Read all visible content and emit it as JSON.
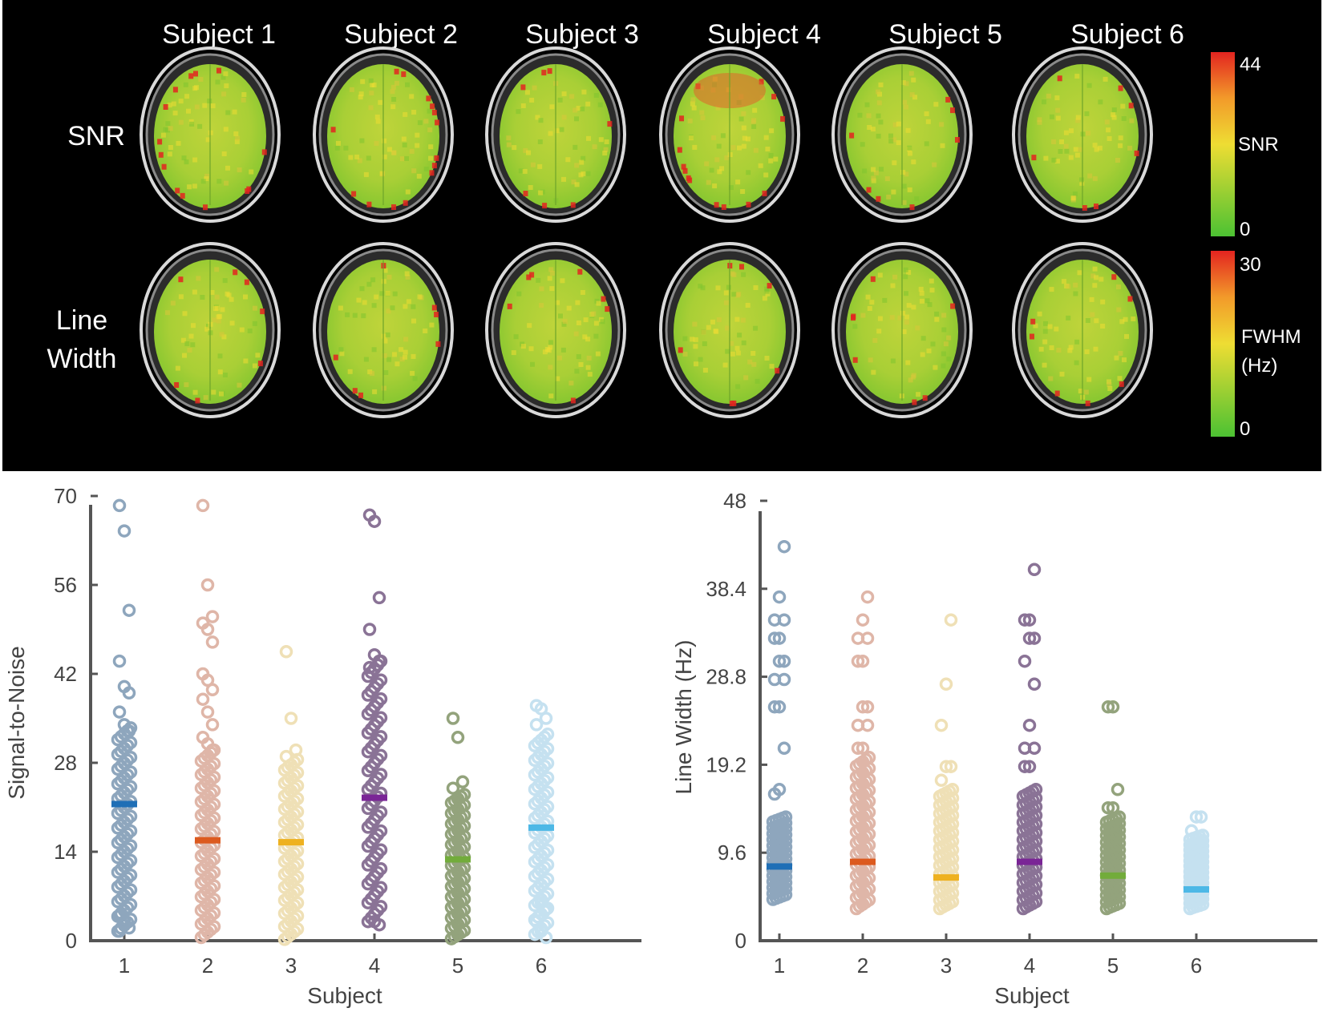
{
  "top_panel": {
    "subjects": [
      "Subject 1",
      "Subject 2",
      "Subject 3",
      "Subject 4",
      "Subject 5",
      "Subject 6"
    ],
    "row_labels": {
      "snr": "SNR",
      "linewidth_line1": "Line",
      "linewidth_line2": "Width"
    },
    "colorbars": {
      "snr": {
        "max": "44",
        "min": "0",
        "label": "SNR"
      },
      "fwhm": {
        "max": "30",
        "min": "0",
        "label_line1": "FWHM",
        "label_line2": "(Hz)"
      }
    }
  },
  "colors": {
    "background_top": "#000000",
    "map_low": "#4cc233",
    "map_mid": "#eedd33",
    "map_high": "#e32420",
    "subject_points": [
      "#8ea6bd",
      "#dfb6a8",
      "#efe0b6",
      "#8a7396",
      "#93a37c",
      "#c5e1f0"
    ],
    "subject_means": [
      "#1f6fb6",
      "#dc5a1f",
      "#eeb120",
      "#7a2596",
      "#72ac3b",
      "#4db8e6"
    ]
  },
  "chart_data": [
    {
      "type": "scatter",
      "id": "snr",
      "title": "",
      "xlabel": "Subject",
      "ylabel": "Signal-to-Noise",
      "categories": [
        "1",
        "2",
        "3",
        "4",
        "5",
        "6"
      ],
      "xlim": [
        0.3,
        7.1
      ],
      "ylim": [
        0,
        70
      ],
      "yticks": [
        0,
        14,
        28,
        42,
        56,
        70
      ],
      "ytick_labels": [
        "0",
        "14",
        "28",
        "42",
        "56",
        "70"
      ],
      "means": [
        21.5,
        15.8,
        15.5,
        22.5,
        12.8,
        17.8
      ],
      "series": [
        {
          "name": "1",
          "range": [
            1.5,
            33.5
          ],
          "outliers": [
            68.5,
            64.5,
            52,
            44,
            40,
            39,
            36,
            34,
            33,
            4,
            3,
            2,
            1.5
          ]
        },
        {
          "name": "2",
          "range": [
            0.5,
            30
          ],
          "outliers": [
            68.5,
            56,
            51,
            50,
            49,
            47,
            42,
            41,
            39.5,
            38,
            36,
            34,
            32,
            31,
            30
          ]
        },
        {
          "name": "3",
          "range": [
            0.2,
            28.5
          ],
          "outliers": [
            45.5,
            35,
            30,
            29
          ]
        },
        {
          "name": "4",
          "range": [
            3,
            44
          ],
          "outliers": [
            67,
            66,
            54,
            49,
            45,
            44,
            43,
            3,
            2.5
          ]
        },
        {
          "name": "5",
          "range": [
            0.3,
            23
          ],
          "outliers": [
            35,
            32,
            25,
            24
          ]
        },
        {
          "name": "6",
          "range": [
            1,
            32.5
          ],
          "outliers": [
            37,
            36.5,
            35,
            34,
            6,
            5,
            3,
            1.5,
            0.5
          ]
        }
      ]
    },
    {
      "type": "scatter",
      "id": "linewidth",
      "title": "",
      "xlabel": "Subject",
      "ylabel": "Line Width (Hz)",
      "categories": [
        "1",
        "2",
        "3",
        "4",
        "5",
        "6"
      ],
      "xlim": [
        0.3,
        7.1
      ],
      "ylim": [
        0,
        48
      ],
      "yticks": [
        0,
        9.6,
        19.2,
        28.8,
        38.4,
        48
      ],
      "ytick_labels": [
        "0",
        "9.6",
        "19.2",
        "28.8",
        "38.4",
        "48"
      ],
      "means": [
        8.1,
        8.6,
        6.9,
        8.6,
        7.1,
        5.6
      ],
      "series": [
        {
          "name": "1",
          "range": [
            4.5,
            13.5
          ],
          "values": [
            16,
            16.5,
            21,
            25.5,
            25.5,
            28.5,
            28.5,
            30.5,
            30.5,
            33,
            33,
            35,
            35,
            37.5,
            43
          ]
        },
        {
          "name": "2",
          "range": [
            3.5,
            20
          ],
          "values": [
            21,
            21,
            23.5,
            23.5,
            25.5,
            25.5,
            30.5,
            30.5,
            33,
            33,
            35,
            37.5
          ]
        },
        {
          "name": "3",
          "range": [
            3.5,
            16.5
          ],
          "values": [
            17.5,
            19,
            19,
            23.5,
            28,
            35
          ]
        },
        {
          "name": "4",
          "range": [
            3.5,
            16.5
          ],
          "values": [
            19,
            19,
            21,
            21,
            23.5,
            28,
            30.5,
            33,
            33,
            35,
            35,
            40.5
          ]
        },
        {
          "name": "5",
          "range": [
            3.5,
            13.5
          ],
          "values": [
            14.5,
            14.5,
            16.5,
            25.5,
            25.5
          ]
        },
        {
          "name": "6",
          "range": [
            3.5,
            11.5
          ],
          "values": [
            12,
            13.5,
            13.5
          ]
        }
      ]
    }
  ]
}
